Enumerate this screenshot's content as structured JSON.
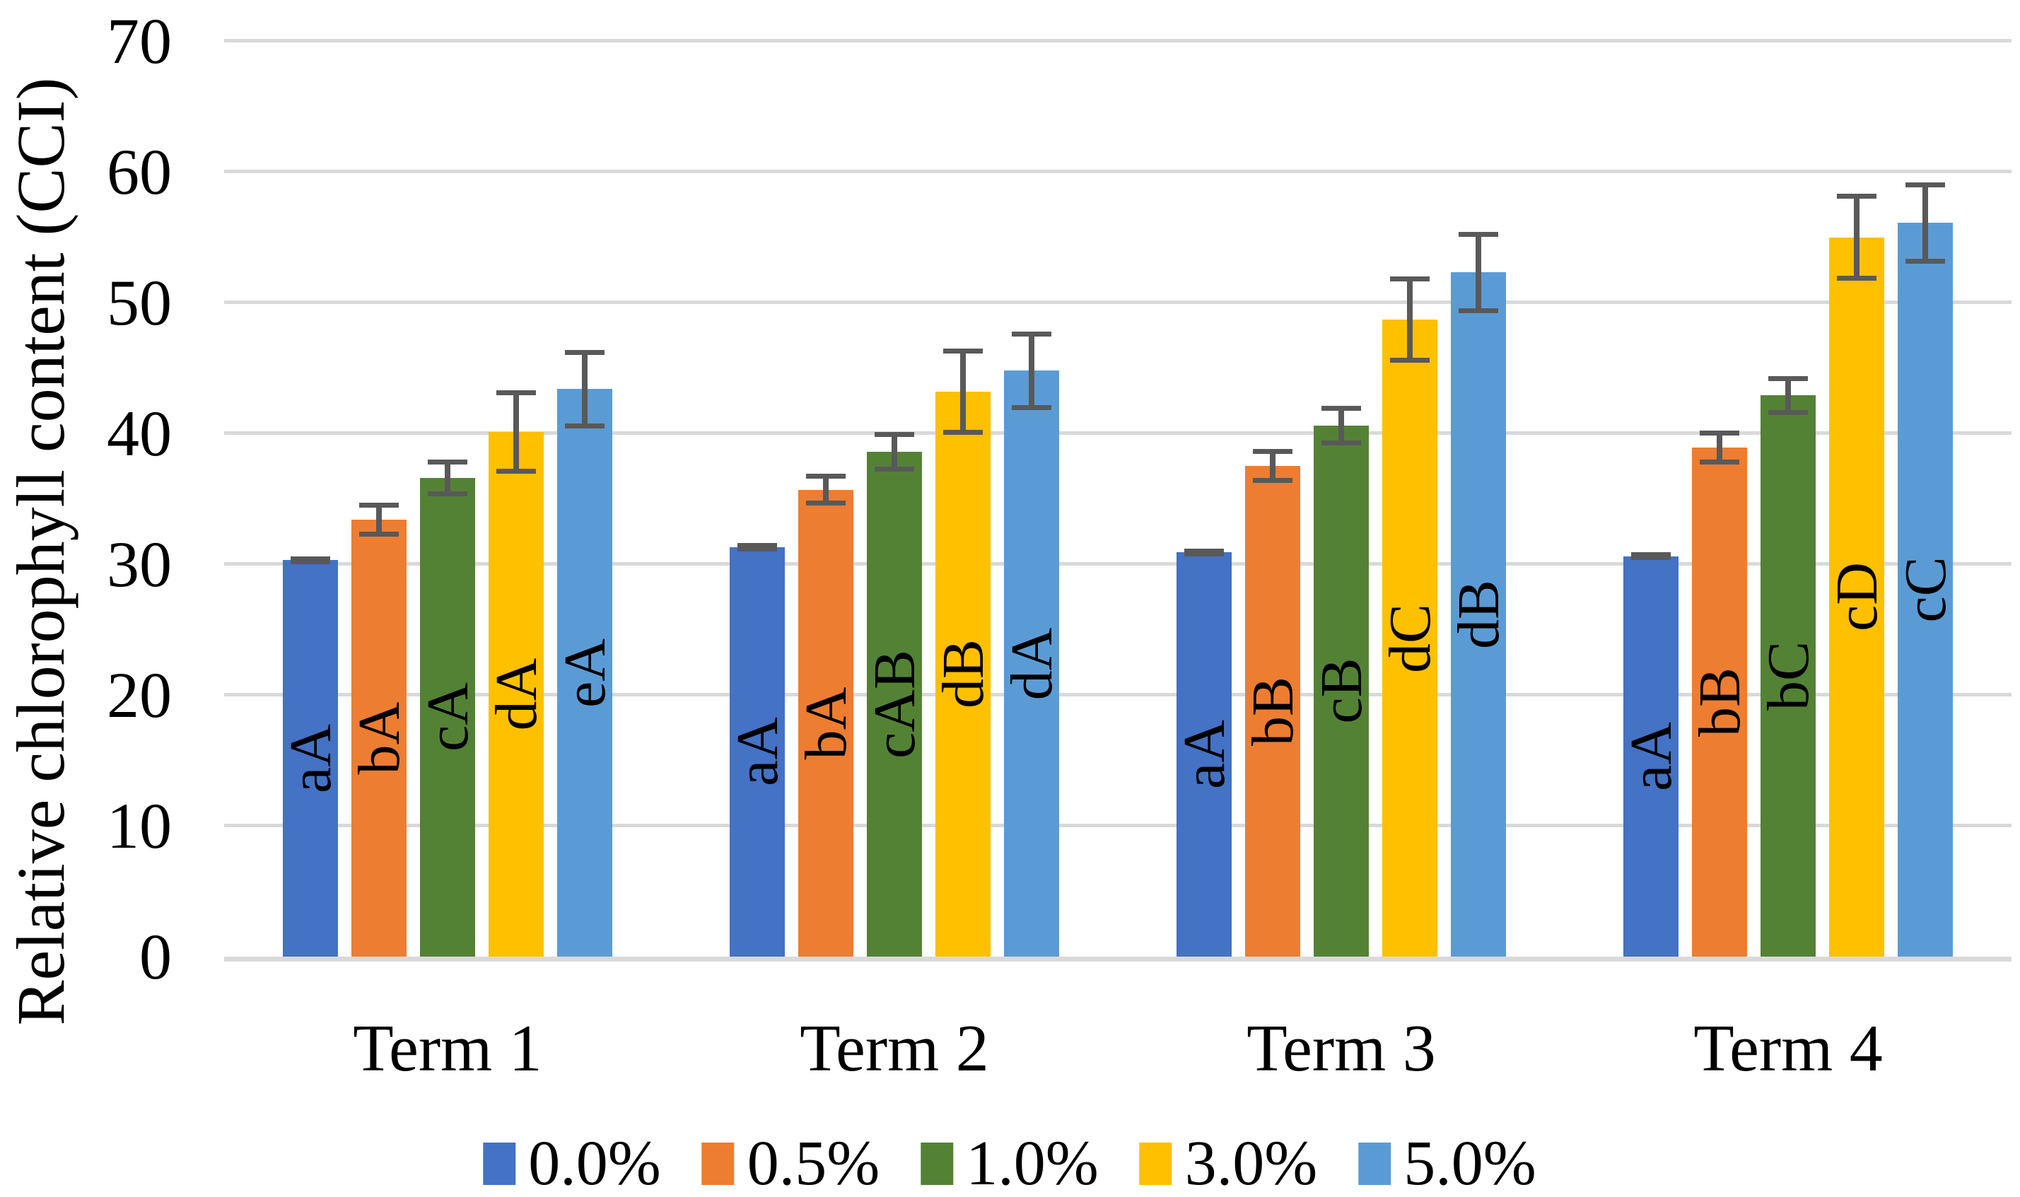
{
  "chart_data": {
    "type": "bar",
    "title": "",
    "ylabel": "Relative chlorophyll content (CCI)",
    "xlabel": "",
    "categories": [
      "Term 1",
      "Term 2",
      "Term 3",
      "Term 4"
    ],
    "series": [
      {
        "name": "0.0%",
        "color": "#4472C4",
        "values": [
          30.3,
          31.3,
          30.9,
          30.6
        ],
        "errors": [
          0.3,
          0.3,
          0.3,
          0.3
        ],
        "bar_labels": [
          "aA",
          "aA",
          "aA",
          "aA"
        ]
      },
      {
        "name": "0.5%",
        "color": "#ED7D31",
        "values": [
          33.4,
          35.7,
          37.5,
          38.9
        ],
        "errors": [
          1.3,
          1.2,
          1.3,
          1.3
        ],
        "bar_labels": [
          "bA",
          "bA",
          "bB",
          "bB"
        ]
      },
      {
        "name": "1.0%",
        "color": "#548235",
        "values": [
          36.6,
          38.6,
          40.6,
          42.9
        ],
        "errors": [
          1.4,
          1.5,
          1.5,
          1.5
        ],
        "bar_labels": [
          "cA",
          "cAB",
          "cB",
          "bC"
        ]
      },
      {
        "name": "3.0%",
        "color": "#FFC000",
        "values": [
          40.1,
          43.2,
          48.7,
          55.0
        ],
        "errors": [
          3.2,
          3.3,
          3.3,
          3.3
        ],
        "bar_labels": [
          "dA",
          "dB",
          "dC",
          "cD"
        ]
      },
      {
        "name": "5.0%",
        "color": "#5B9BD5",
        "values": [
          43.4,
          44.8,
          52.3,
          56.1
        ],
        "errors": [
          3.0,
          3.0,
          3.1,
          3.1
        ],
        "bar_labels": [
          "eA",
          "dA",
          "dB",
          "cC"
        ]
      }
    ],
    "yticks": [
      0,
      10,
      20,
      30,
      40,
      50,
      60,
      70
    ],
    "ylim": [
      0,
      70
    ],
    "grid": true,
    "legend_position": "bottom",
    "gridline_color": "#D9D9D9",
    "error_bar_color": "#595959"
  }
}
